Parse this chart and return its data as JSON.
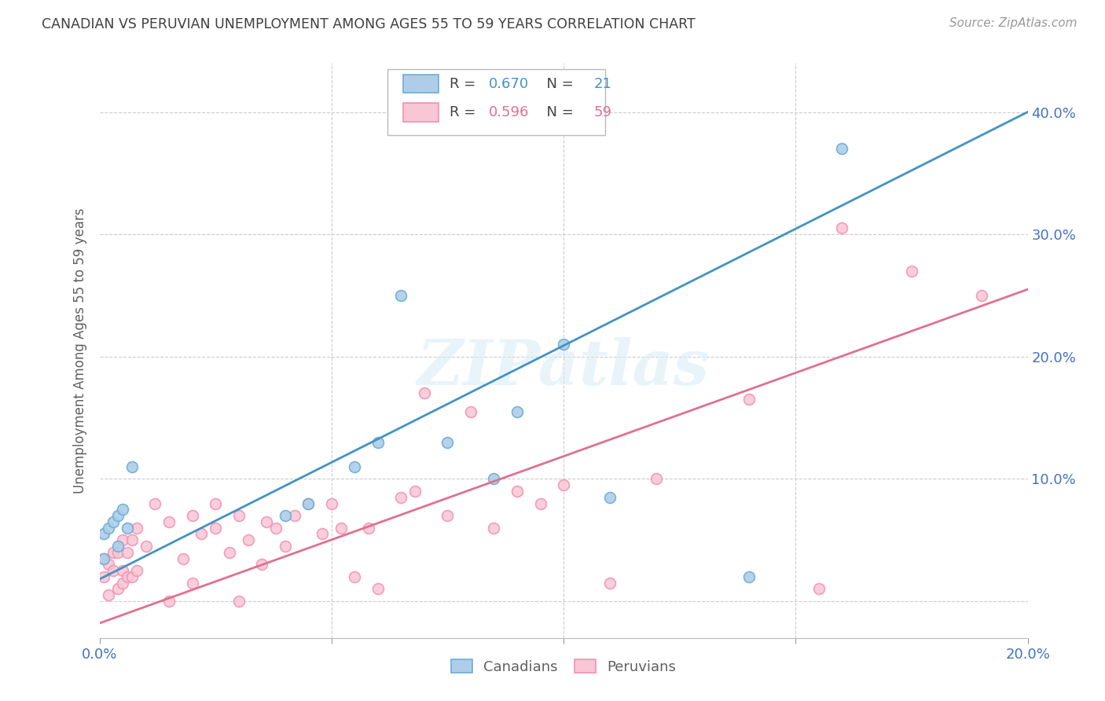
{
  "title": "CANADIAN VS PERUVIAN UNEMPLOYMENT AMONG AGES 55 TO 59 YEARS CORRELATION CHART",
  "source": "Source: ZipAtlas.com",
  "ylabel": "Unemployment Among Ages 55 to 59 years",
  "xlim": [
    0.0,
    0.2
  ],
  "ylim": [
    -0.03,
    0.44
  ],
  "yticks_right": [
    0.1,
    0.2,
    0.3,
    0.4
  ],
  "ytick_right_labels": [
    "10.0%",
    "20.0%",
    "30.0%",
    "40.0%"
  ],
  "canadian_color": "#6baed6",
  "canadian_color_fill": "#aecde8",
  "peruvian_color": "#f48fb1",
  "peruvian_color_fill": "#f9c6d5",
  "canadian_line_color": "#4393c3",
  "peruvian_line_color": "#e07090",
  "R_canadian": 0.67,
  "N_canadian": 21,
  "R_peruvian": 0.596,
  "N_peruvian": 59,
  "canadian_line_x0": 0.0,
  "canadian_line_y0": 0.018,
  "canadian_line_x1": 0.2,
  "canadian_line_y1": 0.4,
  "peruvian_line_x0": 0.0,
  "peruvian_line_y0": -0.018,
  "peruvian_line_x1": 0.2,
  "peruvian_line_y1": 0.255,
  "canadian_x": [
    0.001,
    0.001,
    0.002,
    0.003,
    0.004,
    0.004,
    0.005,
    0.006,
    0.007,
    0.04,
    0.045,
    0.055,
    0.06,
    0.065,
    0.075,
    0.085,
    0.09,
    0.1,
    0.11,
    0.14,
    0.16
  ],
  "canadian_y": [
    0.035,
    0.055,
    0.06,
    0.065,
    0.045,
    0.07,
    0.075,
    0.06,
    0.11,
    0.07,
    0.08,
    0.11,
    0.13,
    0.25,
    0.13,
    0.1,
    0.155,
    0.21,
    0.085,
    0.02,
    0.37
  ],
  "peruvian_x": [
    0.001,
    0.001,
    0.002,
    0.002,
    0.003,
    0.003,
    0.004,
    0.004,
    0.005,
    0.005,
    0.005,
    0.006,
    0.006,
    0.007,
    0.007,
    0.008,
    0.008,
    0.01,
    0.012,
    0.015,
    0.015,
    0.018,
    0.02,
    0.02,
    0.022,
    0.025,
    0.025,
    0.028,
    0.03,
    0.03,
    0.032,
    0.035,
    0.036,
    0.038,
    0.04,
    0.042,
    0.045,
    0.048,
    0.05,
    0.052,
    0.055,
    0.058,
    0.06,
    0.065,
    0.068,
    0.07,
    0.075,
    0.08,
    0.085,
    0.09,
    0.095,
    0.1,
    0.11,
    0.12,
    0.14,
    0.155,
    0.16,
    0.175,
    0.19
  ],
  "peruvian_y": [
    0.02,
    0.035,
    0.005,
    0.03,
    0.025,
    0.04,
    0.01,
    0.04,
    0.015,
    0.025,
    0.05,
    0.02,
    0.04,
    0.02,
    0.05,
    0.025,
    0.06,
    0.045,
    0.08,
    0.0,
    0.065,
    0.035,
    0.015,
    0.07,
    0.055,
    0.06,
    0.08,
    0.04,
    0.0,
    0.07,
    0.05,
    0.03,
    0.065,
    0.06,
    0.045,
    0.07,
    0.08,
    0.055,
    0.08,
    0.06,
    0.02,
    0.06,
    0.01,
    0.085,
    0.09,
    0.17,
    0.07,
    0.155,
    0.06,
    0.09,
    0.08,
    0.095,
    0.015,
    0.1,
    0.165,
    0.01,
    0.305,
    0.27,
    0.25
  ],
  "watermark": "ZIPatlas",
  "background_color": "#ffffff",
  "grid_color": "#cccccc",
  "title_color": "#404040",
  "axis_label_color": "#606060",
  "tick_color": "#4472c4",
  "marker_size": 100,
  "marker_edge_width": 1.2,
  "line_width": 2.0
}
